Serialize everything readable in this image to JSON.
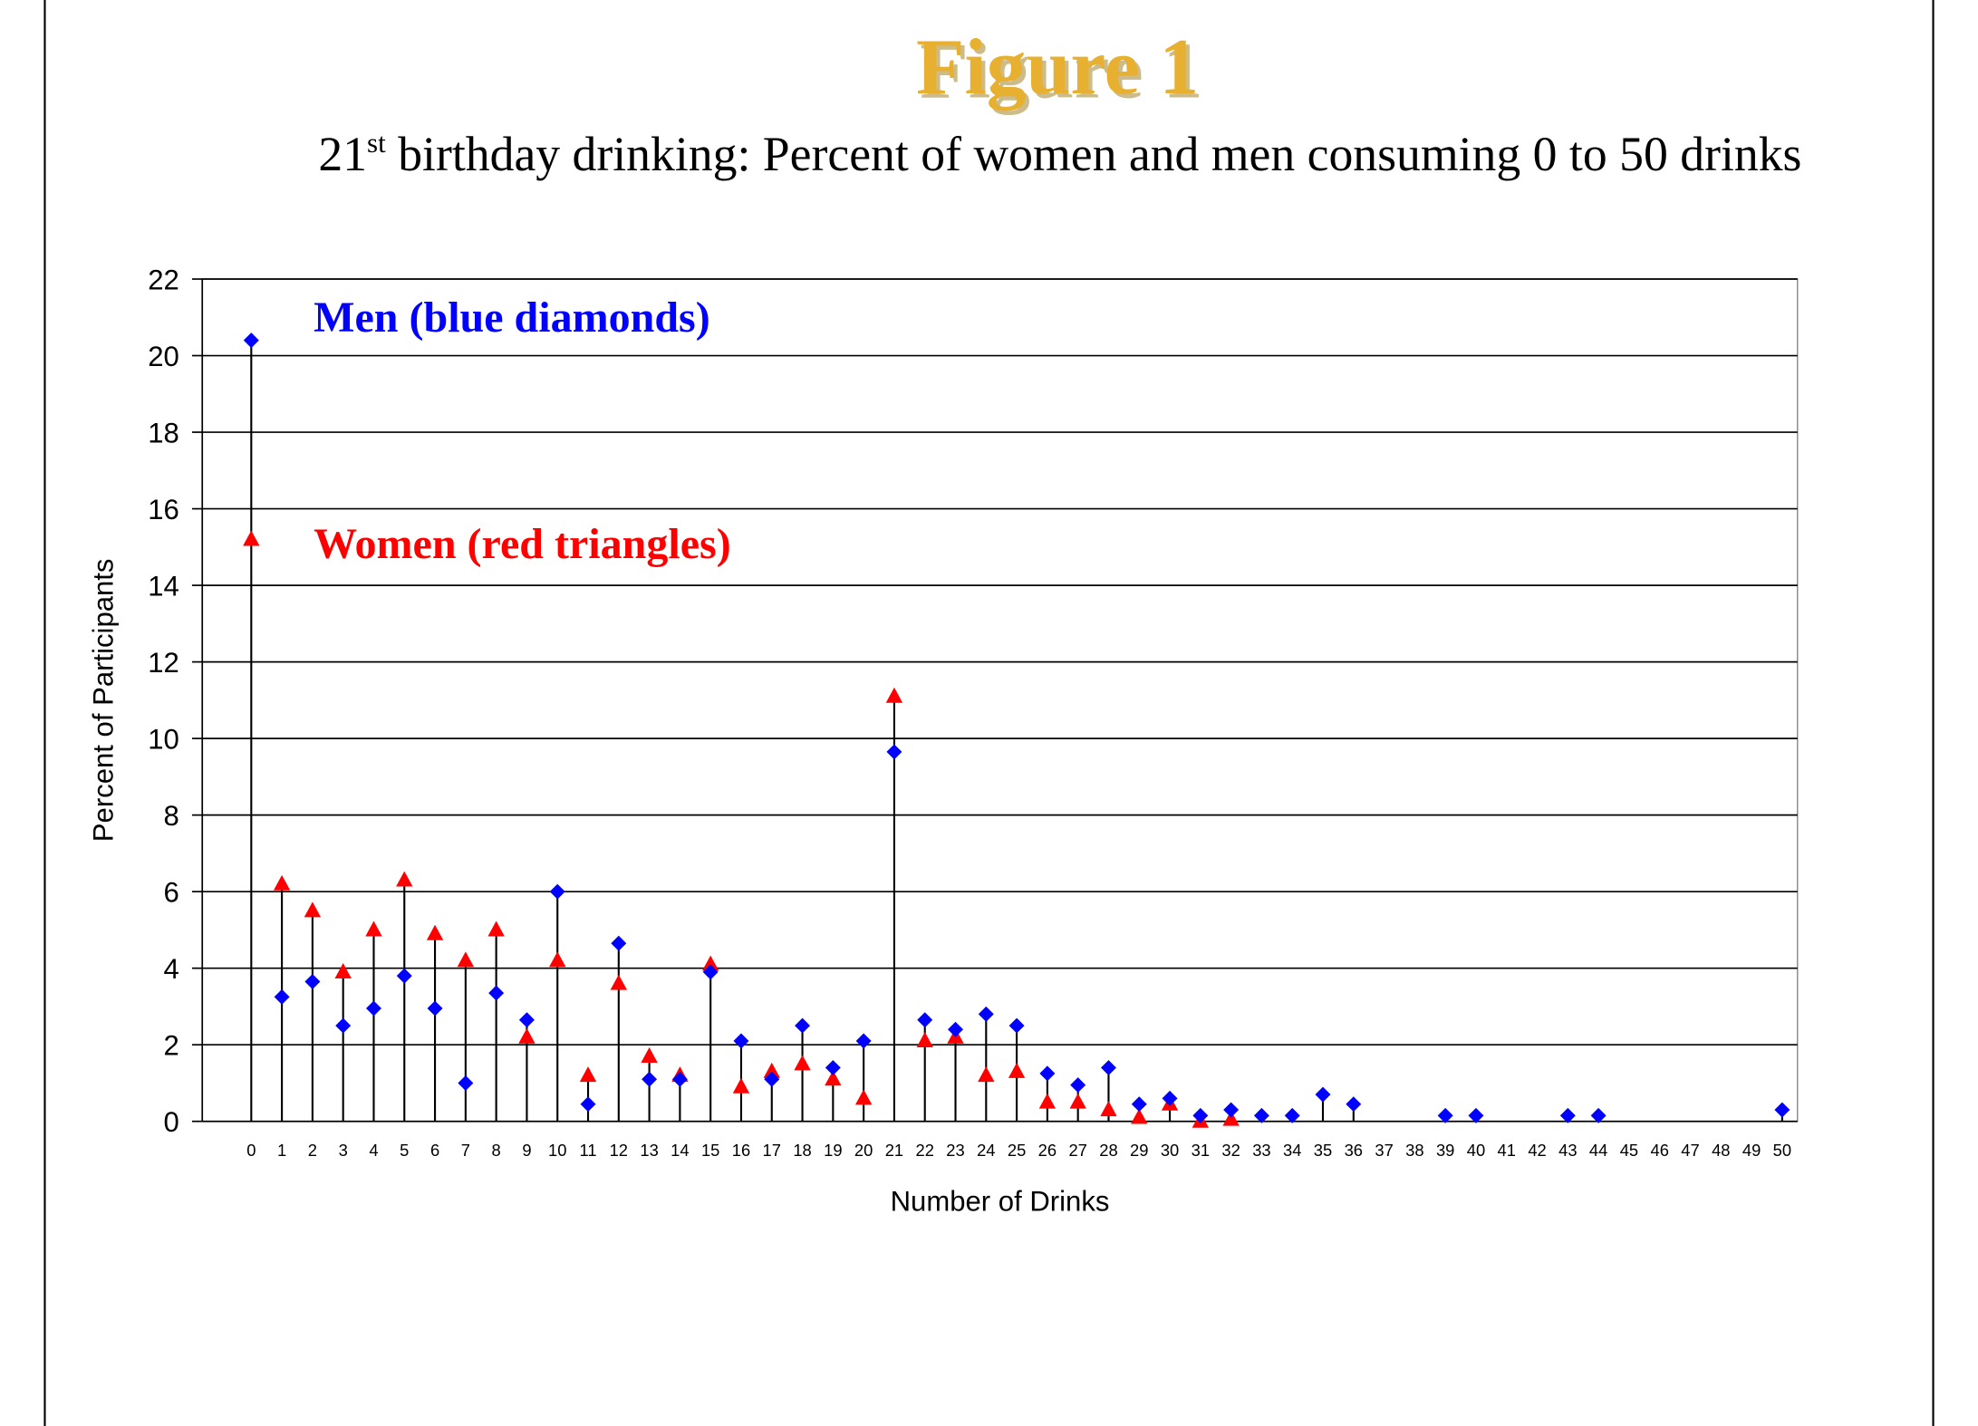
{
  "chart_data": {
    "type": "dot-stem",
    "title": "Figure 1",
    "subtitle": {
      "number": "21",
      "suffix": "st",
      "text": " birthday drinking: Percent of women and men consuming 0 to 50 drinks"
    },
    "x_label": "Number of Drinks",
    "y_label": "Percent of Participants",
    "x": [
      0,
      1,
      2,
      3,
      4,
      5,
      6,
      7,
      8,
      9,
      10,
      11,
      12,
      13,
      14,
      15,
      16,
      17,
      18,
      19,
      20,
      21,
      22,
      23,
      24,
      25,
      26,
      27,
      28,
      29,
      30,
      31,
      32,
      33,
      34,
      35,
      36,
      37,
      38,
      39,
      40,
      41,
      42,
      43,
      44,
      45,
      46,
      47,
      48,
      49,
      50
    ],
    "xlim": [
      -1.6,
      50.5
    ],
    "xticks": [
      0,
      1,
      2,
      3,
      4,
      5,
      6,
      7,
      8,
      9,
      10,
      11,
      12,
      13,
      14,
      15,
      16,
      17,
      18,
      19,
      20,
      21,
      22,
      23,
      24,
      25,
      26,
      27,
      28,
      29,
      30,
      31,
      32,
      33,
      34,
      35,
      36,
      37,
      38,
      39,
      40,
      41,
      42,
      43,
      44,
      45,
      46,
      47,
      48,
      49,
      50
    ],
    "ylim": [
      0,
      22
    ],
    "yticks": [
      0,
      2,
      4,
      6,
      8,
      10,
      12,
      14,
      16,
      18,
      20,
      22
    ],
    "grid": true,
    "series": [
      {
        "name": "Men (blue diamonds)",
        "color": "#0000ff",
        "marker": "diamond",
        "values": [
          20.4,
          3.25,
          3.65,
          2.5,
          2.95,
          3.8,
          2.95,
          1.0,
          3.35,
          2.65,
          6.0,
          0.45,
          4.65,
          1.1,
          1.1,
          3.9,
          2.1,
          1.1,
          2.5,
          1.4,
          2.1,
          9.65,
          2.65,
          2.4,
          2.8,
          2.5,
          1.25,
          0.95,
          1.4,
          0.45,
          0.6,
          0.15,
          0.3,
          0.15,
          0.15,
          0.7,
          0.45,
          null,
          null,
          0.15,
          0.15,
          null,
          null,
          0.15,
          0.15,
          null,
          null,
          null,
          null,
          null,
          0.3
        ]
      },
      {
        "name": "Women (red triangles)",
        "color": "#ff0000",
        "marker": "triangle",
        "values": [
          15.2,
          6.2,
          5.5,
          3.9,
          5.0,
          6.3,
          4.9,
          4.2,
          5.0,
          2.2,
          4.2,
          1.2,
          3.6,
          1.7,
          1.2,
          4.1,
          0.9,
          1.3,
          1.5,
          1.1,
          0.6,
          11.1,
          2.1,
          2.2,
          1.2,
          1.3,
          0.5,
          0.5,
          0.3,
          0.1,
          0.45,
          0.0,
          0.05,
          null,
          null,
          null,
          null,
          null,
          null,
          null,
          null,
          null,
          null,
          null,
          null,
          null,
          null,
          null,
          null,
          null,
          null
        ]
      }
    ]
  }
}
